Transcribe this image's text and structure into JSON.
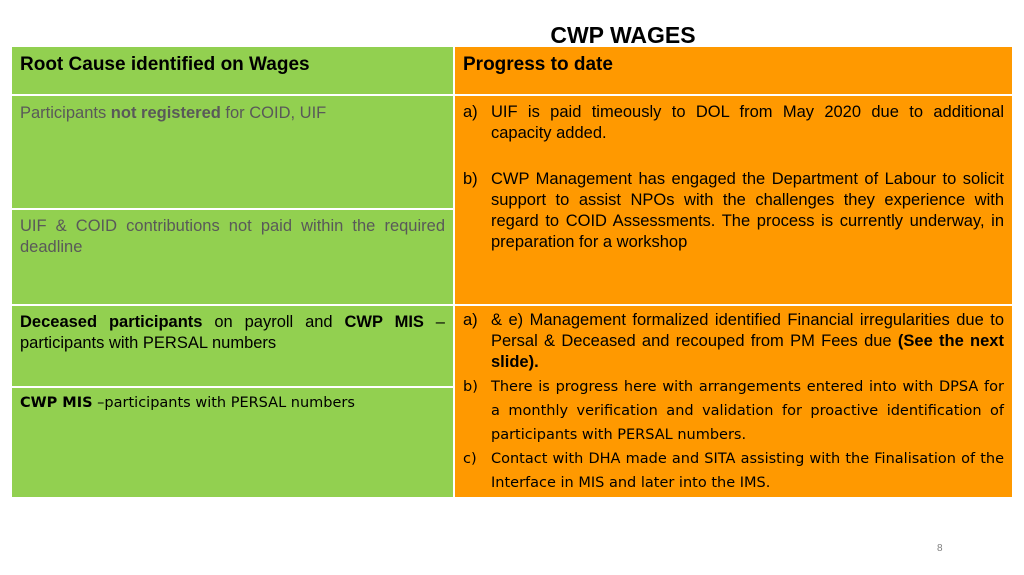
{
  "title": "CWP WAGES",
  "header": {
    "left": "Root Cause identified on Wages",
    "right": "Progress to date"
  },
  "rows": {
    "r1": {
      "pre": "Participants ",
      "bold": "not registered",
      "post": " for COID, UIF"
    },
    "r2": {
      "text": "UIF & COID contributions not paid within the required deadline"
    },
    "r3": {
      "bold1": "Deceased participants",
      "mid": " on payroll and ",
      "bold2": "CWP MIS",
      "post": " – participants with PERSAL numbers"
    },
    "r4": {
      "bold": "CWP MIS",
      "post": " –participants with PERSAL numbers"
    }
  },
  "progress1": [
    {
      "marker": "a)",
      "text": "UIF is paid timeously to DOL from May 2020 due to additional capacity added."
    },
    {
      "marker": "b)",
      "text": "CWP Management has engaged the Department of Labour to solicit support to assist NPOs with the challenges they experience with regard to COID Assessments. The process is currently  underway, in preparation for a workshop"
    }
  ],
  "progress2": [
    {
      "marker": "a)",
      "text": "& e) Management formalized identified Financial irregularities due to Persal & Deceased and recouped from PM Fees due ",
      "bold": "(See the next slide)."
    },
    {
      "marker": "b)",
      "text": "There is progress here with arrangements entered into with DPSA for a monthly verification and validation for proactive identification of participants with PERSAL numbers."
    },
    {
      "marker": "c)",
      "text": "Contact with DHA made and SITA assisting with the Finalisation of the Interface in MIS and later into the IMS."
    }
  ],
  "page_number": "8",
  "colors": {
    "left_fill": "#92d050",
    "right_fill": "#ff9900",
    "muted_text": "#595959"
  }
}
